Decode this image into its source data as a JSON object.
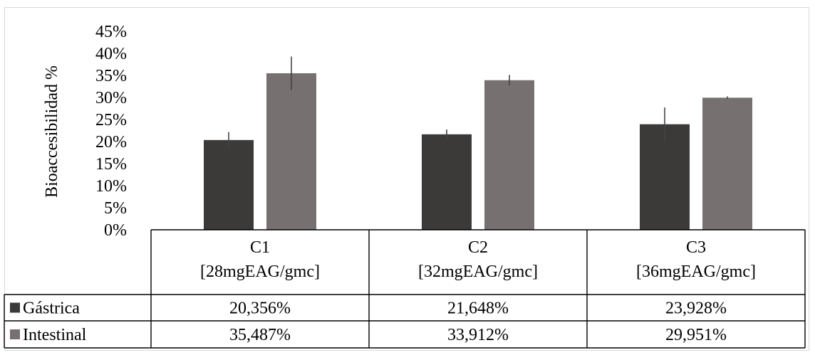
{
  "chart_data": {
    "type": "bar",
    "ylabel": "Bioaccesibilidad %",
    "ylim": [
      0,
      0.45
    ],
    "y_ticks": [
      "45%",
      "40%",
      "35%",
      "30%",
      "25%",
      "20%",
      "15%",
      "10%",
      "5%",
      "0%"
    ],
    "categories": [
      {
        "name": "C1",
        "sub": "[28mgEAG/gmc]"
      },
      {
        "name": "C2",
        "sub": "[32mgEAG/gmc]"
      },
      {
        "name": "C3",
        "sub": "[36mgEAG/gmc]"
      }
    ],
    "series": [
      {
        "name": "Gástrica",
        "color": "#3b3a39",
        "values": [
          0.20356,
          0.21648,
          0.23928
        ],
        "errors": [
          0.018,
          0.011,
          0.038
        ],
        "table_values": [
          "20,356%",
          "21,648%",
          "23,928%"
        ]
      },
      {
        "name": "Intestinal",
        "color": "#767170",
        "values": [
          0.35487,
          0.33912,
          0.29951
        ],
        "errors": [
          0.038,
          0.012,
          0.003
        ],
        "table_values": [
          "35,487%",
          "33,912%",
          "29,951%"
        ]
      }
    ],
    "grid": false,
    "legend": "data-table"
  }
}
